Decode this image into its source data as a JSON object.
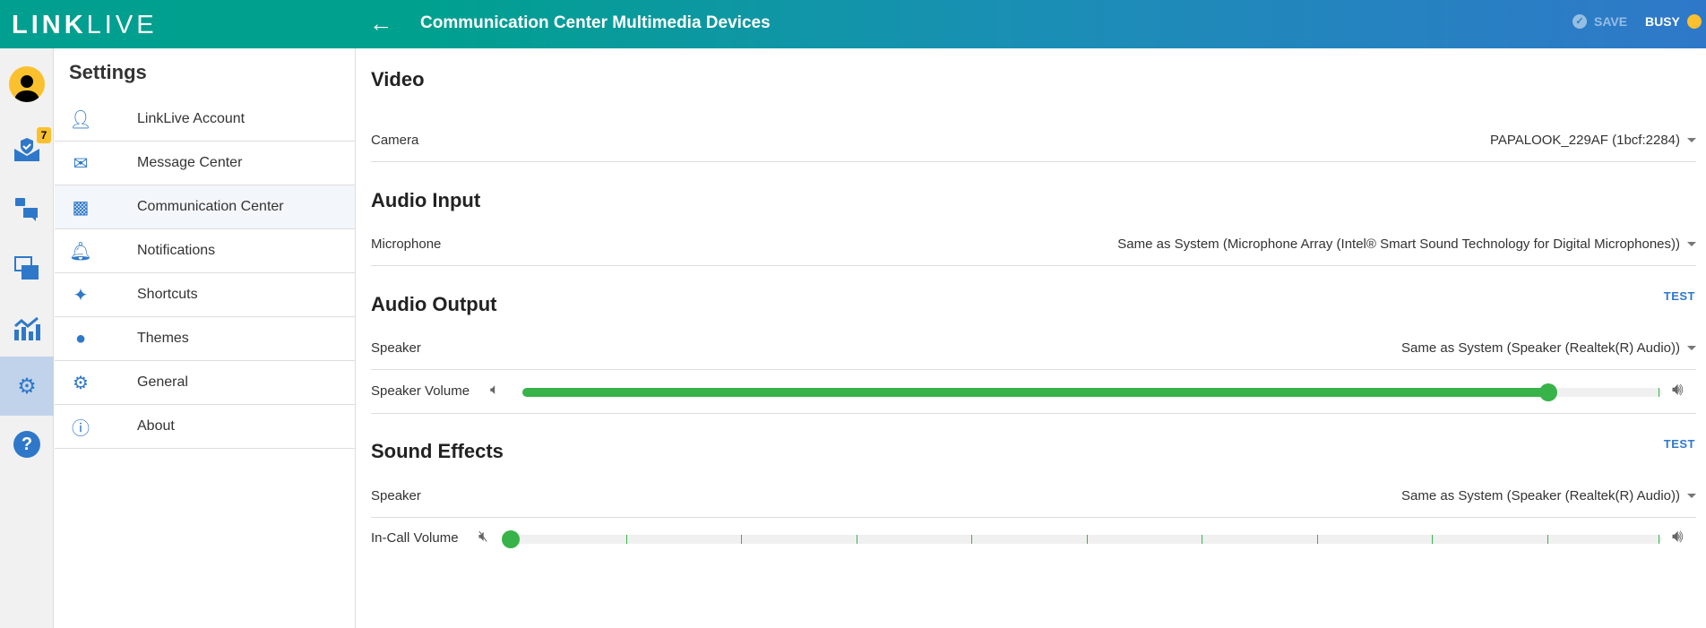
{
  "header": {
    "logo_bold": "LINK",
    "logo_light": "LIVE",
    "title": "Communication Center Multimedia Devices",
    "save_label": "SAVE",
    "status_label": "BUSY",
    "status_color": "#fbc02d"
  },
  "rail": {
    "badge_count": "7",
    "icons": [
      "avatar",
      "message-center-icon",
      "chat-icon",
      "windows-icon",
      "analytics-icon",
      "settings-icon",
      "help-icon"
    ]
  },
  "settings": {
    "title": "Settings",
    "items": [
      {
        "label": "LinkLive Account",
        "icon": "person-icon"
      },
      {
        "label": "Message Center",
        "icon": "mail-shield-icon"
      },
      {
        "label": "Communication Center",
        "icon": "chat-icon",
        "selected": true
      },
      {
        "label": "Notifications",
        "icon": "bell-icon"
      },
      {
        "label": "Shortcuts",
        "icon": "shortcuts-icon"
      },
      {
        "label": "Themes",
        "icon": "palette-icon"
      },
      {
        "label": "General",
        "icon": "gear-icon"
      },
      {
        "label": "About",
        "icon": "info-icon"
      }
    ]
  },
  "video": {
    "heading": "Video",
    "camera_label": "Camera",
    "camera_value": "PAPALOOK_229AF (1bcf:2284)"
  },
  "audio_input": {
    "heading": "Audio Input",
    "mic_label": "Microphone",
    "mic_value": "Same as System (Microphone Array (Intel® Smart Sound Technology for Digital Microphones))"
  },
  "audio_output": {
    "heading": "Audio Output",
    "test_label": "TEST",
    "speaker_label": "Speaker",
    "speaker_value": "Same as System (Speaker (Realtek(R) Audio))",
    "volume_label": "Speaker Volume",
    "volume_percent": 90
  },
  "sound_effects": {
    "heading": "Sound Effects",
    "test_label": "TEST",
    "speaker_label": "Speaker",
    "speaker_value": "Same as System (Speaker (Realtek(R) Audio))",
    "volume_label": "In-Call Volume",
    "volume_percent": 0,
    "muted": true
  },
  "colors": {
    "accent": "#2f78c9",
    "slider": "#37b34a"
  }
}
